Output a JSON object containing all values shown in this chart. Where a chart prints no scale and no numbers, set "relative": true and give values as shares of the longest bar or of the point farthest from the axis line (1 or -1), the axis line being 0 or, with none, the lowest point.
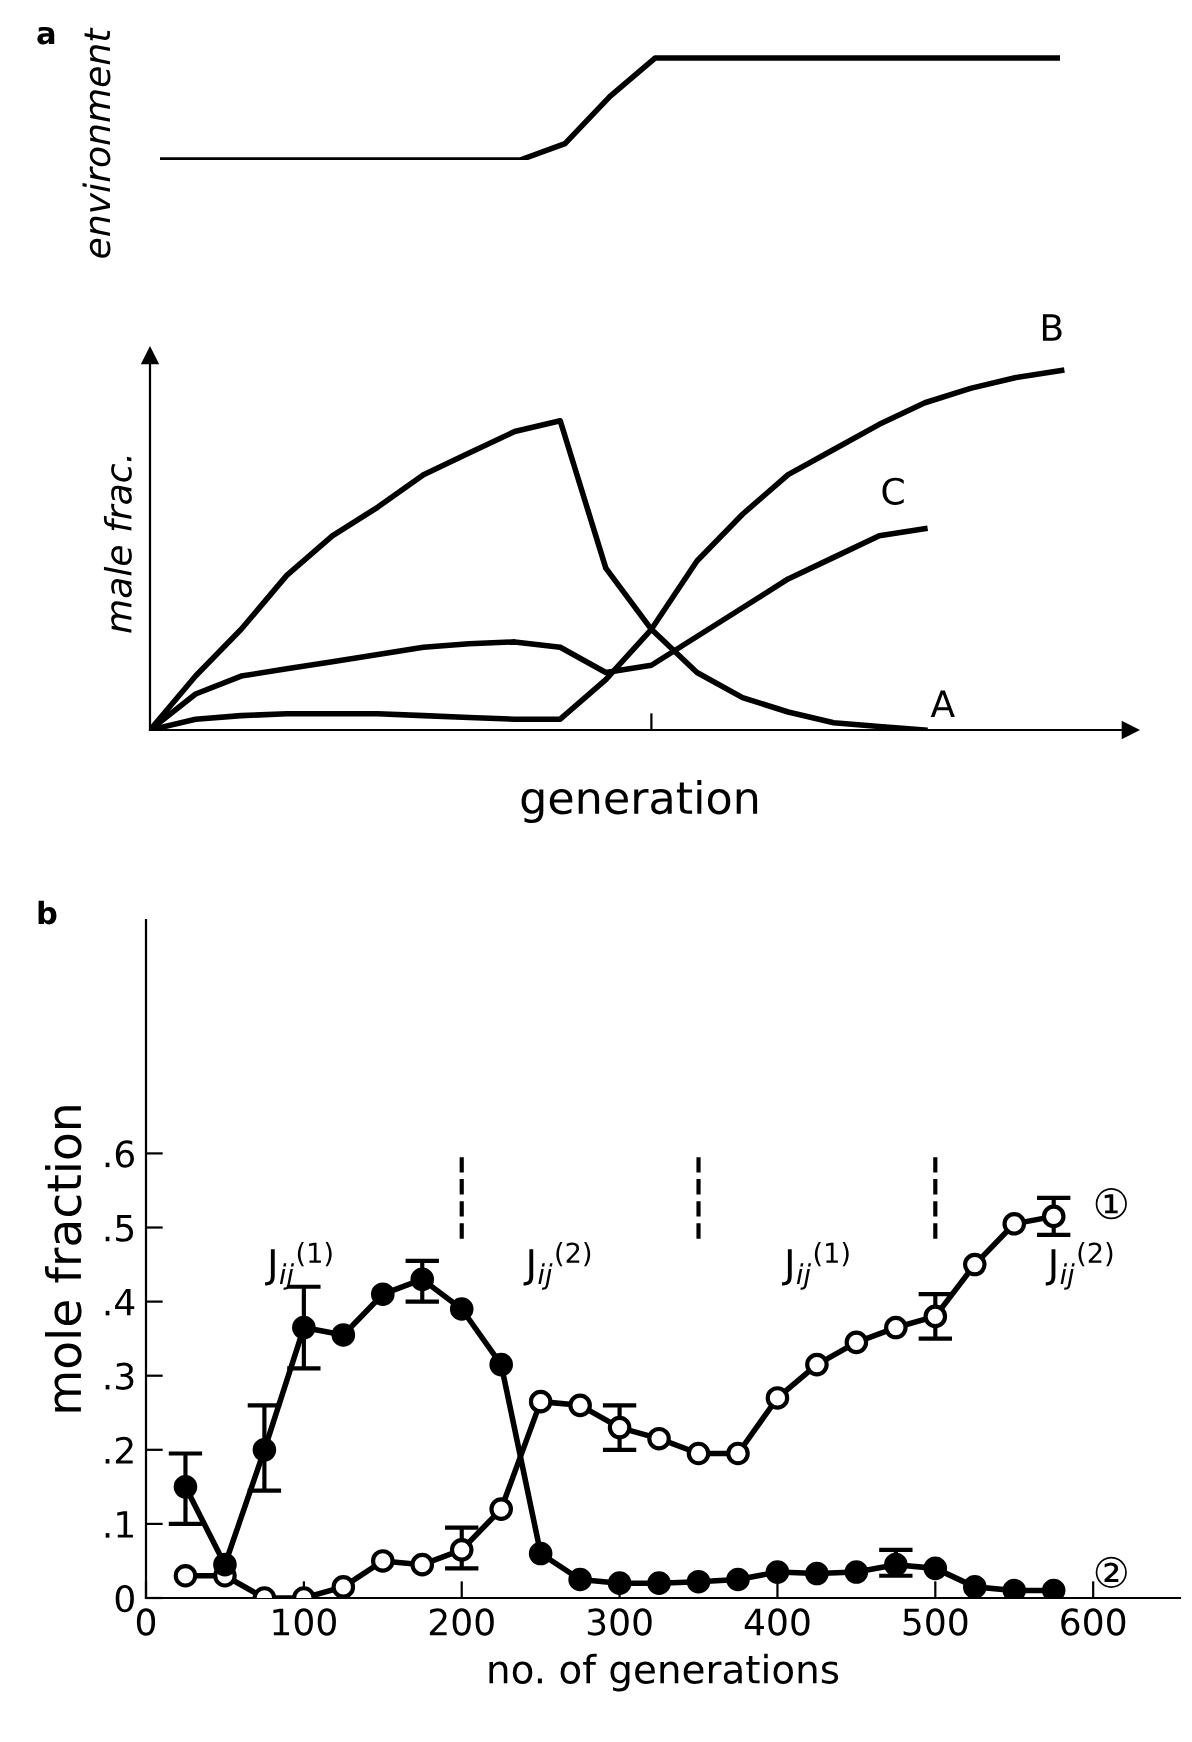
{
  "chart_data": [
    {
      "type": "line",
      "title": "a",
      "ylabel": "environment",
      "relative": true,
      "tick_labels": false,
      "grid": false,
      "legend": false,
      "marker": "none",
      "categories": [
        null,
        null,
        null,
        null,
        null,
        null,
        null,
        null,
        null,
        null,
        null,
        null,
        null,
        null,
        null,
        null,
        null,
        null,
        null,
        null,
        null
      ],
      "series": [
        {
          "color": "#000000",
          "values": [
            0,
            0,
            0,
            0,
            0,
            0,
            0,
            0,
            0,
            0.16,
            0.625,
            1,
            1,
            1,
            1,
            1,
            1,
            1,
            1,
            1,
            1
          ]
        }
      ]
    },
    {
      "type": "line",
      "ylabel": "male frac.",
      "xlabel": "generation",
      "relative": true,
      "tick_labels": false,
      "grid": false,
      "marker": "none",
      "categories": [
        null,
        null,
        null,
        null,
        null,
        null,
        null,
        null,
        null,
        null,
        null,
        null,
        null,
        null,
        null,
        null,
        null,
        null,
        null,
        null,
        null
      ],
      "series": [
        {
          "name": "A",
          "color": "#000000",
          "values": [
            0,
            0.15,
            0.28,
            0.43,
            0.54,
            0.62,
            0.71,
            0.77,
            0.83,
            0.86,
            0.45,
            0.28,
            0.16,
            0.09,
            0.05,
            0.02,
            0.01,
            0,
            null,
            null,
            null
          ]
        },
        {
          "name": "C",
          "color": "#000000",
          "values": [
            0,
            0.1,
            0.15,
            0.17,
            0.19,
            0.21,
            0.23,
            0.24,
            0.245,
            0.23,
            0.16,
            0.18,
            0.26,
            0.34,
            0.42,
            0.48,
            0.54,
            0.56,
            null,
            null,
            null
          ]
        },
        {
          "name": "B",
          "color": "#000000",
          "values": [
            0,
            0.03,
            0.04,
            0.045,
            0.045,
            0.045,
            0.04,
            0.035,
            0.03,
            0.03,
            0.14,
            0.28,
            0.47,
            0.6,
            0.71,
            0.78,
            0.85,
            0.91,
            0.95,
            0.98,
            1.0
          ]
        }
      ]
    },
    {
      "type": "line",
      "title": "b",
      "xlabel": "no. of generations",
      "ylabel": "mole fraction",
      "grid": false,
      "marker": "circle",
      "line_style": "solid",
      "xlim": [
        0,
        655
      ],
      "ylim": [
        0,
        0.915
      ],
      "xticks": [
        0,
        100,
        200,
        300,
        400,
        500,
        600
      ],
      "yticks": [
        0,
        {
          "value": 0.1,
          "label": ".1"
        },
        {
          "value": 0.2,
          "label": ".2"
        },
        {
          "value": 0.3,
          "label": ".3"
        },
        {
          "value": 0.4,
          "label": ".4"
        },
        {
          "value": 0.5,
          "label": ".5"
        },
        {
          "value": 0.6,
          "label": ".6"
        }
      ],
      "x": [
        25,
        50,
        75,
        100,
        125,
        150,
        175,
        200,
        225,
        250,
        275,
        300,
        325,
        350,
        375,
        400,
        425,
        450,
        475,
        500,
        525,
        550,
        575
      ],
      "series": [
        {
          "name": "①",
          "color": "#000000",
          "values": [
            0.03,
            0.03,
            0.0,
            0.0,
            0.015,
            0.05,
            0.045,
            0.065,
            0.12,
            0.265,
            0.26,
            0.23,
            0.215,
            0.195,
            0.195,
            0.27,
            0.315,
            0.345,
            0.365,
            0.38,
            0.45,
            0.505,
            0.515
          ],
          "errors": [
            null,
            null,
            null,
            null,
            null,
            null,
            null,
            [
              0.04,
              0.095
            ],
            null,
            null,
            null,
            [
              0.2,
              0.26
            ],
            null,
            null,
            null,
            null,
            null,
            null,
            null,
            [
              0.35,
              0.41
            ],
            null,
            null,
            [
              0.49,
              0.54
            ]
          ]
        },
        {
          "name": "②",
          "color": "#000000",
          "values": [
            0.15,
            0.045,
            0.2,
            0.365,
            0.355,
            0.41,
            0.43,
            0.39,
            0.315,
            0.06,
            0.025,
            0.02,
            0.02,
            0.022,
            0.025,
            0.035,
            0.033,
            0.035,
            0.045,
            0.04,
            0.015,
            0.01,
            0.01
          ],
          "errors": [
            [
              0.1,
              0.195
            ],
            null,
            [
              0.145,
              0.26
            ],
            [
              0.31,
              0.42
            ],
            null,
            null,
            [
              0.4,
              0.455
            ],
            null,
            null,
            null,
            null,
            null,
            null,
            null,
            null,
            null,
            null,
            null,
            [
              0.03,
              0.065
            ],
            null,
            null,
            null,
            null
          ]
        }
      ],
      "ref_lines": [
        {
          "axis": "x",
          "value": 200,
          "line_style": "dashed",
          "color": "#000000"
        },
        {
          "axis": "x",
          "value": 350,
          "line_style": "dashed",
          "color": "#000000"
        },
        {
          "axis": "x",
          "value": 500,
          "line_style": "dashed",
          "color": "#000000"
        }
      ],
      "annotations": [
        "J$_{ij}$$^{(1)}$",
        "J$_{ij}$$^{(2)}$",
        "J$_{ij}$$^{(1)}$",
        "J$_{ij}$$^{(2)}$"
      ]
    }
  ]
}
